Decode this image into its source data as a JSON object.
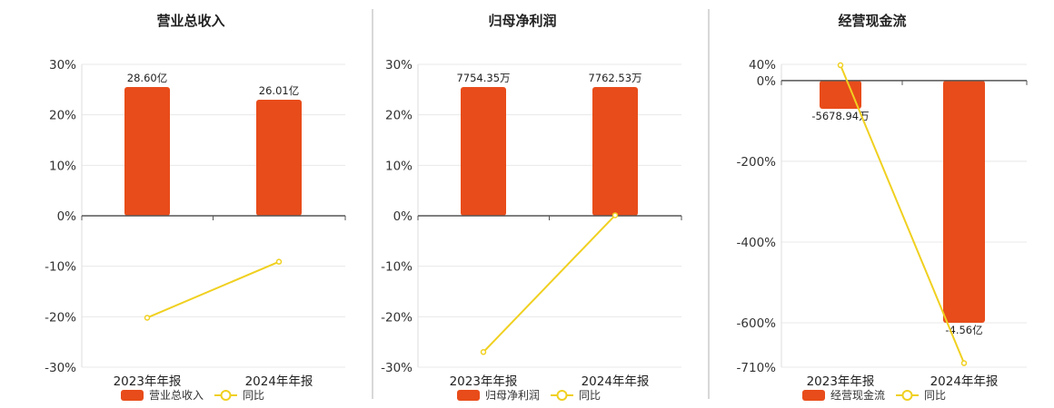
{
  "colors": {
    "bar": "#e84c1a",
    "line": "#f0d020",
    "grid": "#e8e8e8",
    "axis": "#555555",
    "divider": "#b0b0b0"
  },
  "chart_data": [
    {
      "type": "bar",
      "title": "营业总收入",
      "categories": [
        "2023年年报",
        "2024年年报"
      ],
      "yticks": [
        "30%",
        "20%",
        "10%",
        "0%",
        "-10%",
        "-20%",
        "-30%"
      ],
      "series": [
        {
          "name": "营业总收入",
          "type": "bar",
          "labels": [
            "28.60亿",
            "26.01亿"
          ],
          "values": [
            25.5,
            23.0
          ]
        },
        {
          "name": "同比",
          "type": "line",
          "values": [
            -20.2,
            -9.1
          ]
        }
      ],
      "ylim": [
        -30,
        30
      ],
      "grid": true,
      "legend": "bottom"
    },
    {
      "type": "bar",
      "title": "归母净利润",
      "categories": [
        "2023年年报",
        "2024年年报"
      ],
      "yticks": [
        "30%",
        "20%",
        "10%",
        "0%",
        "-10%",
        "-20%",
        "-30%"
      ],
      "series": [
        {
          "name": "归母净利润",
          "type": "bar",
          "labels": [
            "7754.35万",
            "7762.53万"
          ],
          "values": [
            25.5,
            25.5
          ]
        },
        {
          "name": "同比",
          "type": "line",
          "values": [
            -27.0,
            0.1
          ]
        }
      ],
      "ylim": [
        -30,
        30
      ],
      "grid": true,
      "legend": "bottom"
    },
    {
      "type": "bar",
      "title": "经营现金流",
      "categories": [
        "2023年年报",
        "2024年年报"
      ],
      "yticks": [
        "40%",
        "0%",
        "-200%",
        "-400%",
        "-600%",
        "-710%"
      ],
      "series": [
        {
          "name": "经营现金流",
          "type": "bar",
          "labels": [
            "-5678.94万",
            "-4.56亿"
          ],
          "values": [
            -70,
            -600
          ]
        },
        {
          "name": "同比",
          "type": "line",
          "values": [
            38,
            -700
          ]
        }
      ],
      "ylim": [
        -710,
        40
      ],
      "grid": true,
      "legend": "bottom"
    }
  ]
}
